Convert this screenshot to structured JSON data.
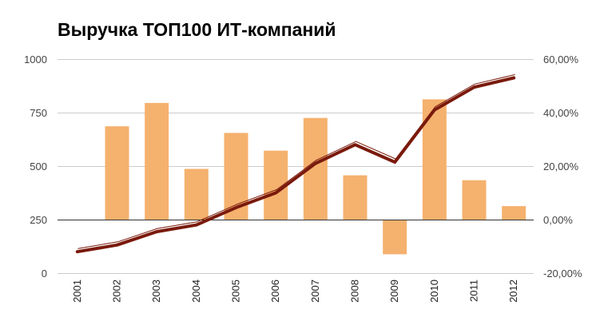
{
  "chart_data": {
    "type": "bar",
    "title": "Выручка ТОП100 ИТ-компаний",
    "categories": [
      "2001",
      "2002",
      "2003",
      "2004",
      "2005",
      "2006",
      "2007",
      "2008",
      "2009",
      "2010",
      "2011",
      "2012"
    ],
    "series": [
      {
        "type": "bar",
        "axis": "left",
        "color": "#f5b16e",
        "values": [
          null,
          686,
          795,
          487,
          655,
          572,
          725,
          457,
          88,
          812,
          434,
          313
        ]
      },
      {
        "type": "line",
        "axis": "right",
        "color": "#7a1a0c",
        "values": [
          -12.0,
          -9.5,
          -4.5,
          -2.0,
          4.5,
          10.0,
          21.0,
          28.0,
          21.5,
          41.0,
          49.5,
          53.0
        ]
      }
    ],
    "y_left": {
      "min": 0,
      "max": 1000,
      "ticks": [
        0,
        250,
        500,
        750,
        1000
      ],
      "tick_labels": [
        "0",
        "250",
        "500",
        "750",
        "1000"
      ]
    },
    "y_right": {
      "min": -20,
      "max": 60,
      "ticks": [
        -20,
        0,
        20,
        40,
        60
      ],
      "tick_labels": [
        "-20,00%",
        "0,00%",
        "20,00%",
        "40,00%",
        "60,00%"
      ]
    },
    "grid": true,
    "legend": "none"
  }
}
